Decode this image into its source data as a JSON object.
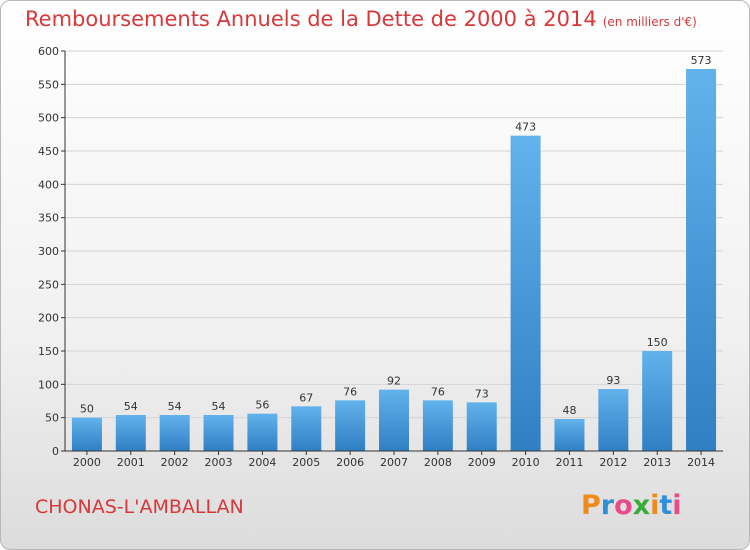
{
  "header": {
    "title": "Remboursements Annuels de la Dette de 2000 à 2014",
    "unit": "(en milliers d'€)"
  },
  "footer": {
    "town": "CHONAS-L'AMBALLAN",
    "logo_text": "Proxiti"
  },
  "colors": {
    "title": "#d8383a",
    "bar_light": "#62b2ec",
    "bar_dark": "#2f7fc4",
    "logo_letters": [
      "#ef8a1c",
      "#2f8fd8",
      "#e84a8a",
      "#3aaa3a",
      "#ef8a1c",
      "#2f8fd8",
      "#e84a8a"
    ]
  },
  "chart_data": {
    "type": "bar",
    "title": "Remboursements Annuels de la Dette de 2000 à 2014",
    "categories": [
      "2000",
      "2001",
      "2002",
      "2003",
      "2004",
      "2005",
      "2006",
      "2007",
      "2008",
      "2009",
      "2010",
      "2011",
      "2012",
      "2013",
      "2014"
    ],
    "values": [
      50,
      54,
      54,
      54,
      56,
      67,
      76,
      92,
      76,
      73,
      473,
      48,
      93,
      150,
      573
    ],
    "ylim": [
      0,
      600
    ],
    "yticks": [
      0,
      50,
      100,
      150,
      200,
      250,
      300,
      350,
      400,
      450,
      500,
      550,
      600
    ],
    "grid": true,
    "data_labels": true
  }
}
